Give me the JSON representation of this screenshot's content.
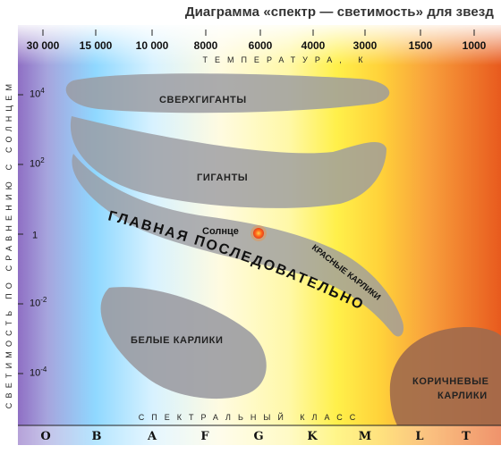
{
  "title": "Диаграмма «спектр — светимость» для звезд",
  "temperature_axis": {
    "label": "ТЕМПЕРАТУРА, К",
    "ticks": [
      "30 000",
      "15 000",
      "10 000",
      "8000",
      "6000",
      "4000",
      "3000",
      "1500",
      "1000"
    ]
  },
  "luminosity_axis": {
    "label": "СВЕТИМОСТЬ ПО СРАВНЕНИЮ С СОЛНЦЕМ",
    "ticks": [
      {
        "base": "10",
        "exp": "4"
      },
      {
        "base": "10",
        "exp": "2"
      },
      {
        "base": "1",
        "exp": ""
      },
      {
        "base": "10",
        "exp": "-2"
      },
      {
        "base": "10",
        "exp": "-4"
      }
    ]
  },
  "spectral_axis": {
    "label": "СПЕКТРАЛЬНЫЙ КЛАСС",
    "classes": [
      "O",
      "B",
      "A",
      "F",
      "G",
      "K",
      "M",
      "L",
      "T"
    ]
  },
  "regions": {
    "supergiants": "СВЕРХГИГАНТЫ",
    "giants": "ГИГАНТЫ",
    "main_sequence": "ГЛАВНАЯ ПОСЛЕДОВАТЕЛЬНОСТЬ",
    "red_dwarfs": "КРАСНЫЕ КАРЛИКИ",
    "white_dwarfs": "БЕЛЫЕ КАРЛИКИ",
    "brown_dwarfs_line1": "КОРИЧНЕВЫЕ",
    "brown_dwarfs_line2": "КАРЛИКИ"
  },
  "sun_label": "Солнце",
  "colors": {
    "spectrum_violet": "#8f6fc4",
    "spectrum_blue": "#8fd8ff",
    "spectrum_white": "#fffbe0",
    "spectrum_yellow": "#fff04a",
    "spectrum_orange": "#f8a03c",
    "spectrum_red": "#e85a1e",
    "region_grey": "#9a9aa0",
    "sun": "#ff5a1a"
  },
  "icons": {
    "sun": "sun-icon"
  }
}
